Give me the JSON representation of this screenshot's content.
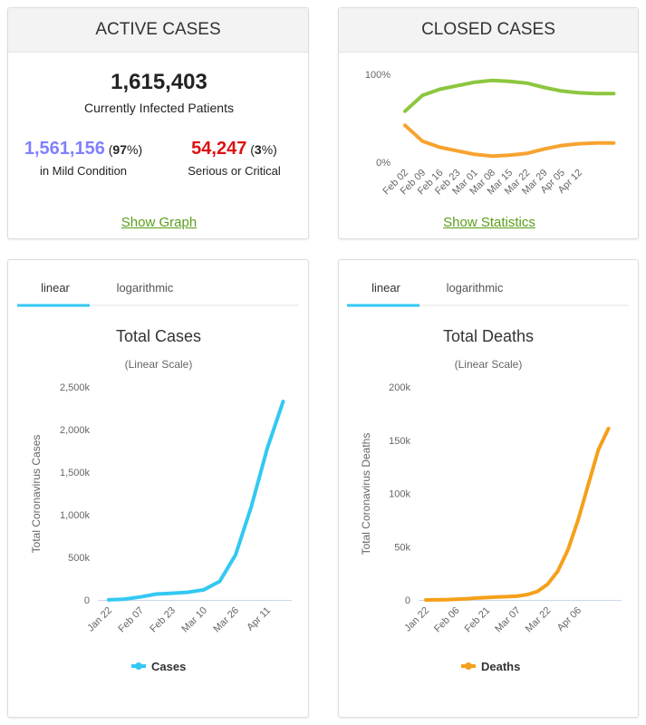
{
  "active_cases": {
    "header": "ACTIVE CASES",
    "total": "1,615,403",
    "total_label": "Currently Infected Patients",
    "mild": {
      "count": "1,561,156",
      "share": [
        "(",
        "97",
        "%)"
      ],
      "label": "in Mild Condition"
    },
    "serious": {
      "count": "54,247",
      "share": [
        "(",
        "3",
        "%)"
      ],
      "label": "Serious or Critical"
    },
    "link": "Show Graph"
  },
  "closed_cases": {
    "header": "CLOSED CASES",
    "link": "Show Statistics"
  },
  "cases_panel": {
    "tabs": [
      "linear",
      "logarithmic"
    ]
  },
  "deaths_panel": {
    "tabs": [
      "linear",
      "logarithmic"
    ]
  },
  "chart_data": [
    {
      "type": "line",
      "categories": [
        "Feb 02",
        "Feb 09",
        "Feb 16",
        "Feb 23",
        "Mar 01",
        "Mar 08",
        "Mar 15",
        "Mar 22",
        "Mar 29",
        "Apr 05",
        "Apr 12",
        null,
        null
      ],
      "series": [
        {
          "color": "#8dc63f",
          "values": [
            58,
            76,
            83,
            87,
            91,
            93,
            92,
            90,
            85,
            81,
            79,
            78,
            78
          ]
        },
        {
          "color": "#f7a330",
          "values": [
            42,
            24,
            17,
            13,
            9,
            7,
            8,
            10,
            15,
            19,
            21,
            22,
            22
          ]
        }
      ],
      "ylim": [
        0,
        100
      ],
      "yticks": [
        {
          "value": 0,
          "label": "0%"
        },
        {
          "value": 100,
          "label": "100%"
        }
      ],
      "grid": false
    },
    {
      "type": "line",
      "title": "Total Cases",
      "subtitle": "(Linear Scale)",
      "y_label": "Total Coronavirus Cases",
      "categories": [
        "Jan 22",
        null,
        "Feb 07",
        null,
        "Feb 23",
        null,
        "Mar 10",
        null,
        "Mar 26",
        null,
        "Apr 11",
        null
      ],
      "series": [
        {
          "name": "Cases",
          "color": "#33c8f2",
          "values": [
            557,
            9800,
            34900,
            69000,
            79000,
            90000,
            119000,
            218000,
            530000,
            1100000,
            1780000,
            2330000
          ]
        }
      ],
      "ylim": [
        0,
        2500000
      ],
      "yticks": [
        0,
        {
          "value": 500000,
          "label": "500k"
        },
        {
          "value": 1000000,
          "label": "1,000k"
        },
        {
          "value": 1500000,
          "label": "1,500k"
        },
        {
          "value": 2000000,
          "label": "2,000k"
        },
        {
          "value": 2500000,
          "label": "2,500k"
        }
      ],
      "grid": false
    },
    {
      "type": "line",
      "title": "Total Deaths",
      "subtitle": "(Linear Scale)",
      "y_label": "Total Coronavirus Deaths",
      "categories": [
        "Jan 22",
        null,
        null,
        "Feb 06",
        null,
        null,
        "Feb 21",
        null,
        null,
        "Mar 07",
        null,
        null,
        "Mar 22",
        null,
        null,
        "Apr 06",
        null,
        null,
        null
      ],
      "series": [
        {
          "name": "Deaths",
          "color": "#f5a01a",
          "values": [
            17,
            81,
            259,
            565,
            1115,
            1770,
            2250,
            2770,
            3100,
            3600,
            4980,
            8000,
            14700,
            27000,
            47000,
            75000,
            108000,
            141000,
            161000
          ]
        }
      ],
      "ylim": [
        0,
        200000
      ],
      "yticks": [
        0,
        {
          "value": 50000,
          "label": "50k"
        },
        {
          "value": 100000,
          "label": "100k"
        },
        {
          "value": 150000,
          "label": "150k"
        },
        {
          "value": 200000,
          "label": "200k"
        }
      ],
      "grid": false
    }
  ]
}
